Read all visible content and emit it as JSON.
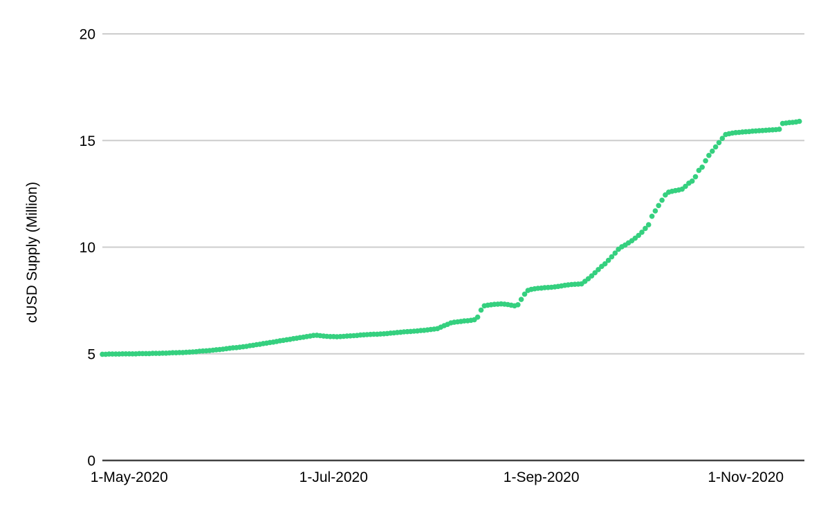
{
  "chart_data": {
    "type": "scatter",
    "title": "",
    "xlabel": "",
    "ylabel": "cUSD Supply (Million)",
    "legend": "none",
    "grid": "horizontal",
    "ylim": [
      0,
      20
    ],
    "x_start_date": "2020-04-23",
    "x_step_days": 1,
    "x_range_days": [
      0,
      209.5
    ],
    "y_ticks": [
      {
        "label": "0",
        "value": 0
      },
      {
        "label": "5",
        "value": 5
      },
      {
        "label": "10",
        "value": 10
      },
      {
        "label": "15",
        "value": 15
      },
      {
        "label": "20",
        "value": 20
      }
    ],
    "x_ticks": [
      {
        "label": "1-May-2020",
        "day_index": 8
      },
      {
        "label": "1-Jul-2020",
        "day_index": 69
      },
      {
        "label": "1-Sep-2020",
        "day_index": 131
      },
      {
        "label": "1-Nov-2020",
        "day_index": 192
      }
    ],
    "colors": {
      "dot": "#35D07F",
      "gridline": "#cccccc",
      "axis_line": "#424242",
      "text": "#000000",
      "background": "#ffffff"
    },
    "series_name": "cUSD Supply",
    "values": [
      4.98,
      4.98,
      4.99,
      4.99,
      4.99,
      4.99,
      5.0,
      5.0,
      5.0,
      5.0,
      5.0,
      5.01,
      5.01,
      5.01,
      5.01,
      5.02,
      5.02,
      5.02,
      5.03,
      5.03,
      5.04,
      5.05,
      5.05,
      5.06,
      5.06,
      5.07,
      5.08,
      5.09,
      5.1,
      5.12,
      5.13,
      5.14,
      5.15,
      5.17,
      5.19,
      5.2,
      5.22,
      5.24,
      5.26,
      5.28,
      5.29,
      5.31,
      5.33,
      5.35,
      5.38,
      5.4,
      5.43,
      5.45,
      5.48,
      5.5,
      5.53,
      5.55,
      5.58,
      5.61,
      5.63,
      5.66,
      5.68,
      5.71,
      5.73,
      5.76,
      5.78,
      5.81,
      5.83,
      5.86,
      5.87,
      5.85,
      5.83,
      5.82,
      5.81,
      5.81,
      5.8,
      5.81,
      5.82,
      5.83,
      5.84,
      5.85,
      5.86,
      5.88,
      5.89,
      5.9,
      5.91,
      5.92,
      5.92,
      5.93,
      5.94,
      5.95,
      5.97,
      5.98,
      6.0,
      6.01,
      6.03,
      6.04,
      6.05,
      6.06,
      6.07,
      6.09,
      6.1,
      6.12,
      6.14,
      6.16,
      6.18,
      6.25,
      6.32,
      6.38,
      6.45,
      6.48,
      6.5,
      6.52,
      6.54,
      6.55,
      6.57,
      6.6,
      6.72,
      7.05,
      7.25,
      7.28,
      7.3,
      7.32,
      7.33,
      7.34,
      7.33,
      7.31,
      7.28,
      7.25,
      7.3,
      7.55,
      7.8,
      7.97,
      8.02,
      8.05,
      8.07,
      8.08,
      8.1,
      8.11,
      8.12,
      8.14,
      8.16,
      8.18,
      8.21,
      8.23,
      8.25,
      8.26,
      8.27,
      8.28,
      8.4,
      8.52,
      8.65,
      8.8,
      8.95,
      9.1,
      9.22,
      9.38,
      9.55,
      9.72,
      9.9,
      10.02,
      10.1,
      10.2,
      10.3,
      10.42,
      10.55,
      10.7,
      10.88,
      11.05,
      11.45,
      11.7,
      11.95,
      12.2,
      12.45,
      12.58,
      12.62,
      12.65,
      12.68,
      12.72,
      12.85,
      13.0,
      13.1,
      13.3,
      13.6,
      13.75,
      14.05,
      14.3,
      14.5,
      14.7,
      14.9,
      15.1,
      15.28,
      15.32,
      15.35,
      15.37,
      15.38,
      15.4,
      15.41,
      15.42,
      15.44,
      15.45,
      15.46,
      15.47,
      15.48,
      15.49,
      15.5,
      15.51,
      15.53,
      15.8,
      15.82,
      15.84,
      15.85,
      15.87,
      15.9
    ]
  }
}
